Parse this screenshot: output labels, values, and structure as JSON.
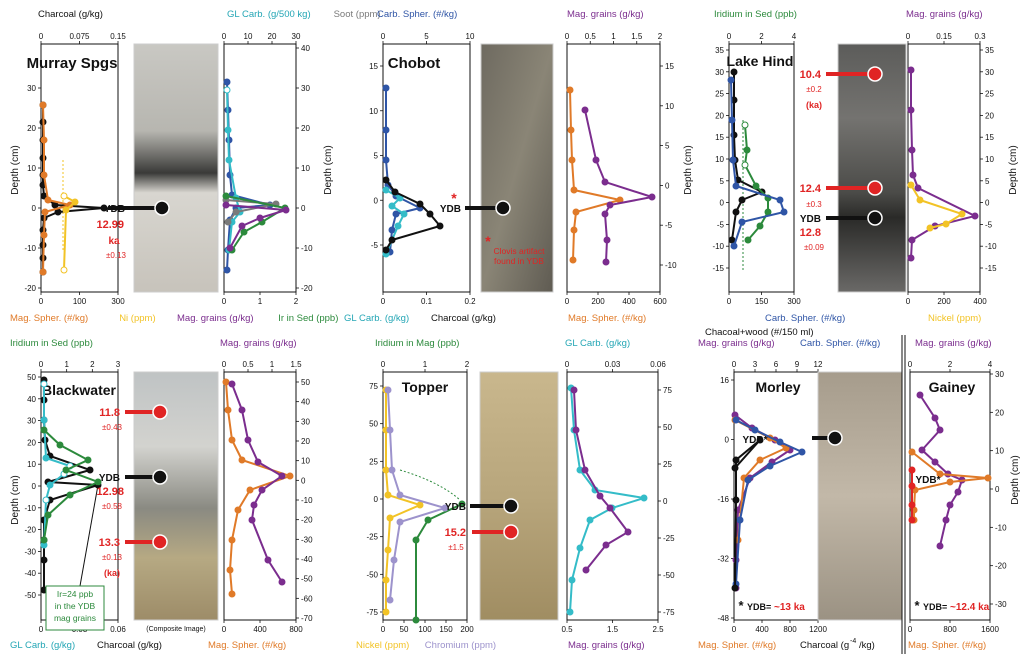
{
  "colors": {
    "black": "#111111",
    "blue": "#2f55a6",
    "cyan": "#34bcc8",
    "green": "#2c8a3c",
    "purple": "#7b2d8e",
    "orange": "#e07a28",
    "yellow": "#f2c326",
    "lavender": "#9d93cc",
    "gray": "#7a7a7a",
    "red": "#e02424",
    "teal_label": "#24a6b5",
    "photo_frame": "#cccccc"
  },
  "chart_data": [
    {
      "type": "line",
      "site": "Murray Spgs",
      "top_labels": [
        {
          "text": "Charcoal (g/kg)",
          "color": "black"
        },
        {
          "text": "GL Carb. (g/500 kg)",
          "color": "teal_label"
        },
        {
          "text": "Soot (ppm)",
          "color": "gray"
        },
        {
          "text": "Carb. Spher. (#/kg)",
          "color": "blue"
        }
      ],
      "bottom_labels": [
        {
          "text": "Mag. Spher. (#/kg)",
          "color": "orange"
        },
        {
          "text": "Ni (ppm)",
          "color": "yellow"
        },
        {
          "text": "Mag. grains (g/kg)",
          "color": "purple"
        },
        {
          "text": "Ir in Sed (ppb)",
          "color": "green"
        }
      ],
      "ylabel": "Depth (cm)",
      "left_ticks": [
        "30",
        "20",
        "10",
        "0",
        "-10",
        "-20"
      ],
      "right_ticks": [
        "40",
        "30",
        "20",
        "10",
        "0",
        "-10",
        "-20"
      ],
      "top_ticks_1": [
        "0",
        "0.075",
        "0.15"
      ],
      "bottom_ticks_1": [
        "0",
        "100",
        "300"
      ],
      "top_ticks_2": [
        "0",
        "10",
        "20",
        "30"
      ],
      "bottom_ticks_2": [
        "0",
        "1",
        "2"
      ],
      "ydb": {
        "label": "YDB",
        "date": "12.99",
        "unit": "ka",
        "err": "±0.13"
      }
    },
    {
      "type": "line",
      "site": "Chobot",
      "top_labels": [
        {
          "text": "Carb. Spher. (#/kg)",
          "color": "blue"
        },
        {
          "text": "Mag. grains (g/kg)",
          "color": "purple"
        }
      ],
      "bottom_labels": [
        {
          "text": "GL Carb. (g/kg)",
          "color": "teal_label"
        },
        {
          "text": "Charcoal (g/kg)",
          "color": "black"
        },
        {
          "text": "Mag. Spher. (#/kg)",
          "color": "orange"
        }
      ],
      "left_ticks": [
        "15",
        "10",
        "5",
        "0",
        "-5"
      ],
      "right_ticks": [
        "15",
        "10",
        "5",
        "0",
        "-5",
        "-10"
      ],
      "top_ticks_1": [
        "0",
        "5",
        "10"
      ],
      "bottom_ticks_1": [
        "0",
        "0.1",
        "0.2"
      ],
      "top_ticks_2": [
        "0",
        "0.5",
        "1",
        "1.5",
        "2"
      ],
      "bottom_ticks_2": [
        "0",
        "200",
        "400",
        "600"
      ],
      "ydb": {
        "label": "YDB"
      },
      "note": "Clovis artifact found in YDB"
    },
    {
      "type": "line",
      "site": "Lake Hind",
      "top_labels": [
        {
          "text": "Iridium in Sed (ppb)",
          "color": "green"
        },
        {
          "text": "Mag. grains (g/kg)",
          "color": "purple"
        }
      ],
      "bottom_labels": [
        {
          "text": "Carb. Spher. (#/kg)",
          "color": "blue"
        },
        {
          "text": "Chacoal+wood (#/150 ml)",
          "color": "black"
        },
        {
          "text": "Nickel (ppm)",
          "color": "yellow"
        }
      ],
      "ylabel": "Depth (cm)",
      "left_ticks": [
        "35",
        "30",
        "25",
        "20",
        "15",
        "10",
        "5",
        "0",
        "-5",
        "-10",
        "-15"
      ],
      "right_ticks": [
        "35",
        "30",
        "25",
        "20",
        "15",
        "10",
        "5",
        "0",
        "-5",
        "-10",
        "-15"
      ],
      "top_ticks_1": [
        "0",
        "2",
        "4"
      ],
      "bottom_ticks_1": [
        "0",
        "150",
        "300"
      ],
      "top_ticks_2": [
        "0",
        "0.15",
        "0.3"
      ],
      "bottom_ticks_2": [
        "0",
        "200",
        "400"
      ],
      "dates": [
        {
          "value": "10.4",
          "err": "±0.2",
          "unit": "(ka)"
        },
        {
          "value": "12.4",
          "err": "±0.3"
        },
        {
          "value": "12.8",
          "err": "±0.09"
        }
      ],
      "ydb": {
        "label": "YDB"
      }
    },
    {
      "type": "line",
      "site": "Blackwater",
      "top_labels": [
        {
          "text": "Iridium in Sed (ppb)",
          "color": "green"
        },
        {
          "text": "Mag. grains (g/kg)",
          "color": "purple"
        }
      ],
      "bottom_labels": [
        {
          "text": "GL Carb. (g/kg)",
          "color": "teal_label"
        },
        {
          "text": "Charcoal (g/kg)",
          "color": "black"
        },
        {
          "text": "Mag. Spher. (#/kg)",
          "color": "orange"
        }
      ],
      "ylabel": "Depth (cm)",
      "left_ticks": [
        "50",
        "40",
        "30",
        "20",
        "10",
        "0",
        "-10",
        "-20",
        "-30",
        "-40",
        "-50"
      ],
      "right_ticks": [
        "50",
        "40",
        "30",
        "20",
        "10",
        "0",
        "-10",
        "-20",
        "-30",
        "-40",
        "-50",
        "-60",
        "-70"
      ],
      "top_ticks_1": [
        "0",
        "1",
        "2",
        "3"
      ],
      "bottom_ticks_1": [
        "0",
        "0.03",
        "0.06"
      ],
      "top_ticks_2": [
        "0",
        "0.5",
        "1",
        "1.5"
      ],
      "bottom_ticks_2": [
        "0",
        "400",
        "800"
      ],
      "dates": [
        {
          "value": "11.8",
          "err": "±0.43"
        },
        {
          "value": "12.98",
          "err": "±0.58"
        },
        {
          "value": "13.3",
          "err": "±0.13",
          "unit": "(ka)"
        }
      ],
      "ydb": {
        "label": "YDB"
      },
      "note_lines": [
        "Ir=24 ppb",
        "in the YDB",
        "mag grains"
      ],
      "photo_caption": "(Composite Image)"
    },
    {
      "type": "line",
      "site": "Topper",
      "top_labels": [
        {
          "text": "Iridium in Mag (ppb)",
          "color": "green"
        },
        {
          "text": "GL Carb. (g/kg)",
          "color": "teal_label"
        }
      ],
      "bottom_labels": [
        {
          "text": "Nickel (ppm)",
          "color": "yellow"
        },
        {
          "text": "Chromium (ppm)",
          "color": "lavender"
        },
        {
          "text": "Mag. grains (g/kg)",
          "color": "purple"
        }
      ],
      "left_ticks": [
        "75",
        "50",
        "25",
        "0",
        "-25",
        "-50",
        "-75"
      ],
      "right_ticks": [
        "75",
        "50",
        "25",
        "0",
        "-25",
        "-50",
        "-75"
      ],
      "top_ticks_1": [
        "0",
        "1",
        "2"
      ],
      "bottom_ticks_1": [
        "0",
        "50",
        "100",
        "150",
        "200"
      ],
      "top_ticks_2": [
        "0",
        "0.03",
        "0.06"
      ],
      "bottom_ticks_2": [
        "0.5",
        "1.5",
        "2.5"
      ],
      "dates": [
        {
          "value": "15.2",
          "err": "±1.5"
        }
      ],
      "ydb": {
        "label": "YDB"
      }
    },
    {
      "type": "line",
      "site": "Morley",
      "top_labels": [
        {
          "text": "Mag. grains (g/kg)",
          "color": "purple"
        },
        {
          "text": "Carb. Spher. (#/kg)",
          "color": "blue"
        }
      ],
      "bottom_labels": [
        {
          "text": "Mag. Spher. (#/kg)",
          "color": "orange"
        },
        {
          "text": "Charcoal (g",
          "color": "black"
        },
        {
          "text": "-4",
          "color": "black"
        },
        {
          "text": "/kg)",
          "color": "black"
        }
      ],
      "left_ticks": [
        "16",
        "0",
        "-16",
        "-32",
        "-48"
      ],
      "top_ticks_1": [
        "0",
        "3",
        "6",
        "9",
        "12"
      ],
      "bottom_ticks_1": [
        "0",
        "400",
        "800",
        "1200"
      ],
      "ydb": {
        "label": "YDB*"
      },
      "footnote": {
        "star": "*",
        "label": "YDB=",
        "value": "~13 ka"
      }
    },
    {
      "type": "line",
      "site": "Gainey",
      "top_labels": [
        {
          "text": "Mag. grains (g/kg)",
          "color": "purple"
        }
      ],
      "bottom_labels": [
        {
          "text": "Mag. Spher. (#/kg)",
          "color": "orange"
        }
      ],
      "ylabel": "Depth (cm)",
      "right_ticks": [
        "30",
        "20",
        "10",
        "0",
        "-10",
        "-20",
        "-30"
      ],
      "top_ticks_1": [
        "0",
        "2",
        "4"
      ],
      "bottom_ticks_1": [
        "0",
        "800",
        "1600"
      ],
      "ydb": {
        "label": "YDB*"
      },
      "footnote": {
        "star": "*",
        "label": "YDB=",
        "value": "~12.4 ka"
      }
    }
  ]
}
